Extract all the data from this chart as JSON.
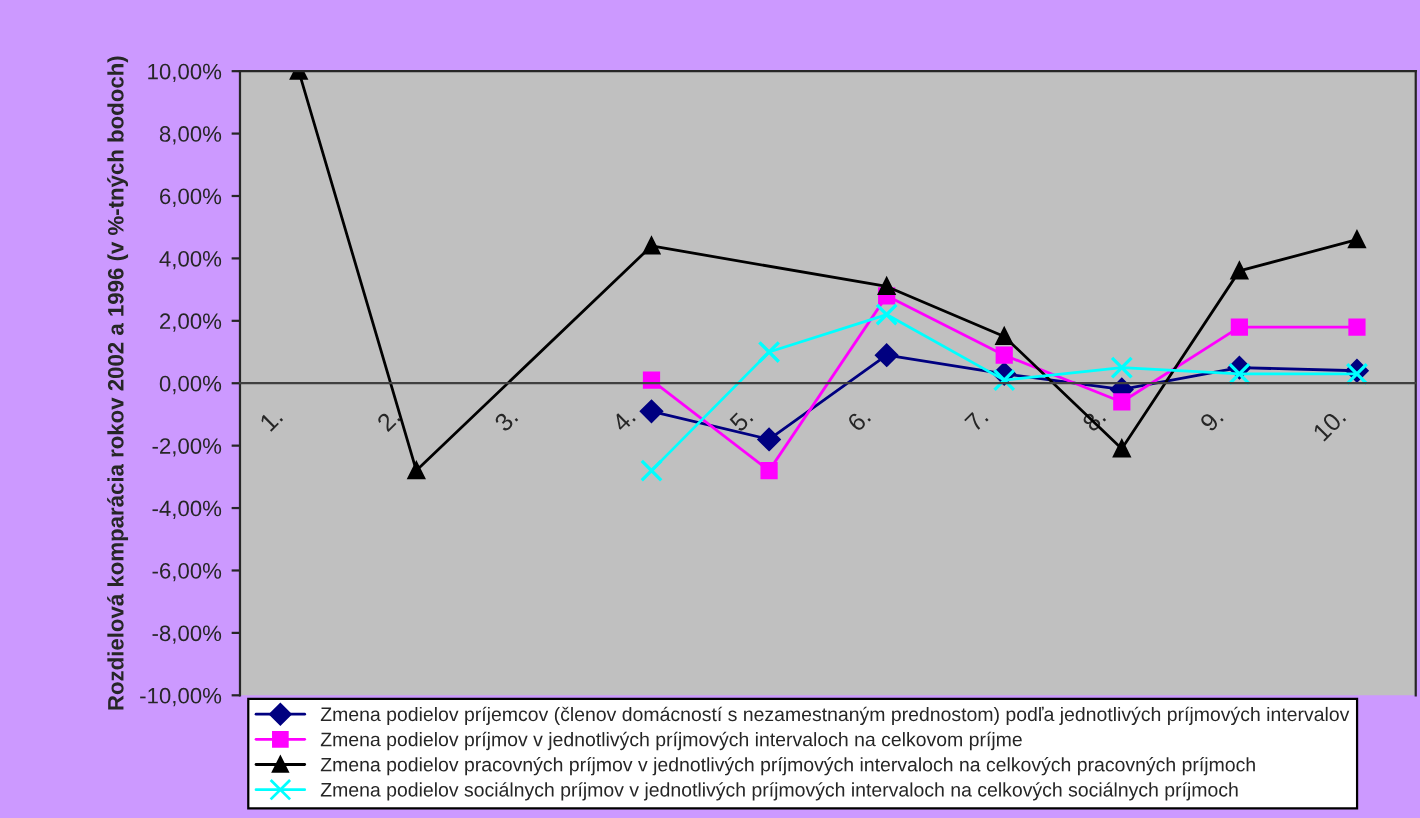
{
  "chart_data": {
    "type": "line",
    "ylabel": "Rozdielová komparácia rokov 2002 a 1996 (v %-tných bodoch)",
    "categories": [
      "1.",
      "2.",
      "3.",
      "4.",
      "5.",
      "6.",
      "7.",
      "8.",
      "9.",
      "10."
    ],
    "ylim": [
      -10,
      10
    ],
    "yticks": [
      {
        "value": -10,
        "label": "-10,00%"
      },
      {
        "value": -8,
        "label": "-8,00%"
      },
      {
        "value": -6,
        "label": "-6,00%"
      },
      {
        "value": -4,
        "label": "-4,00%"
      },
      {
        "value": -2,
        "label": "-2,00%"
      },
      {
        "value": 0,
        "label": "0,00%"
      },
      {
        "value": 2,
        "label": "2,00%"
      },
      {
        "value": 4,
        "label": "4,00%"
      },
      {
        "value": 6,
        "label": "6,00%"
      },
      {
        "value": 8,
        "label": "8,00%"
      },
      {
        "value": 10,
        "label": "10,00%"
      }
    ],
    "grid": false,
    "legend": "bottom",
    "series": [
      {
        "name": "Zmena podielov príjemcov (členov domácností s nezamestnaným prednostom) podľa jednotlivých príjmových intervalov",
        "color": "#000080",
        "marker": "diamond",
        "values": [
          null,
          null,
          null,
          -0.9,
          -1.8,
          0.9,
          0.3,
          -0.2,
          0.5,
          0.4
        ]
      },
      {
        "name": "Zmena podielov príjmov v jednotlivých príjmových intervaloch na celkovom príjme",
        "color": "#ff00ff",
        "marker": "square",
        "values": [
          null,
          null,
          null,
          0.1,
          -2.8,
          2.8,
          0.9,
          -0.6,
          1.8,
          1.8
        ]
      },
      {
        "name": "Zmena podielov pracovných príjmov v jednotlivých príjmových intervaloch na celkových pracovných príjmoch",
        "color": "#000000",
        "marker": "triangle",
        "values": [
          10.0,
          -2.8,
          null,
          4.4,
          null,
          3.1,
          1.5,
          -2.1,
          3.6,
          4.6
        ]
      },
      {
        "name": "Zmena podielov sociálnych príjmov v jednotlivých príjmových intervaloch na celkových sociálnych príjmoch",
        "color": "#00ffff",
        "marker": "cross",
        "values": [
          null,
          null,
          null,
          -2.8,
          1.0,
          2.2,
          0.1,
          0.5,
          0.3,
          0.3
        ]
      }
    ]
  }
}
